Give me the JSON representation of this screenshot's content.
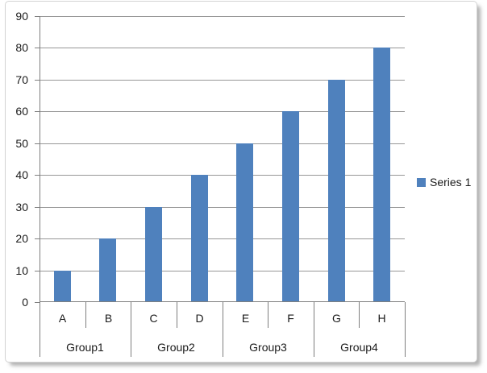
{
  "chart_data": {
    "type": "bar",
    "title": "",
    "xlabel": "",
    "ylabel": "",
    "categories": [
      "A",
      "B",
      "C",
      "D",
      "E",
      "F",
      "G",
      "H"
    ],
    "category_groups": [
      {
        "label": "Group1",
        "categories": [
          "A",
          "B"
        ]
      },
      {
        "label": "Group2",
        "categories": [
          "C",
          "D"
        ]
      },
      {
        "label": "Group3",
        "categories": [
          "E",
          "F"
        ]
      },
      {
        "label": "Group4",
        "categories": [
          "G",
          "H"
        ]
      }
    ],
    "series": [
      {
        "name": "Series 1",
        "values": [
          10,
          20,
          30,
          40,
          50,
          60,
          70,
          80
        ],
        "color": "#4F81BD"
      }
    ],
    "ylim": [
      0,
      90
    ],
    "ytick_step": 10,
    "yticks": [
      0,
      10,
      20,
      30,
      40,
      50,
      60,
      70,
      80,
      90
    ],
    "grid": true,
    "legend_position": "right"
  },
  "colors": {
    "bar": "#4F81BD",
    "gridline": "#979797",
    "axis": "#7f7f7f",
    "text": "#1a1a1a",
    "chart_border": "#d3d3d3",
    "background": "#ffffff"
  }
}
